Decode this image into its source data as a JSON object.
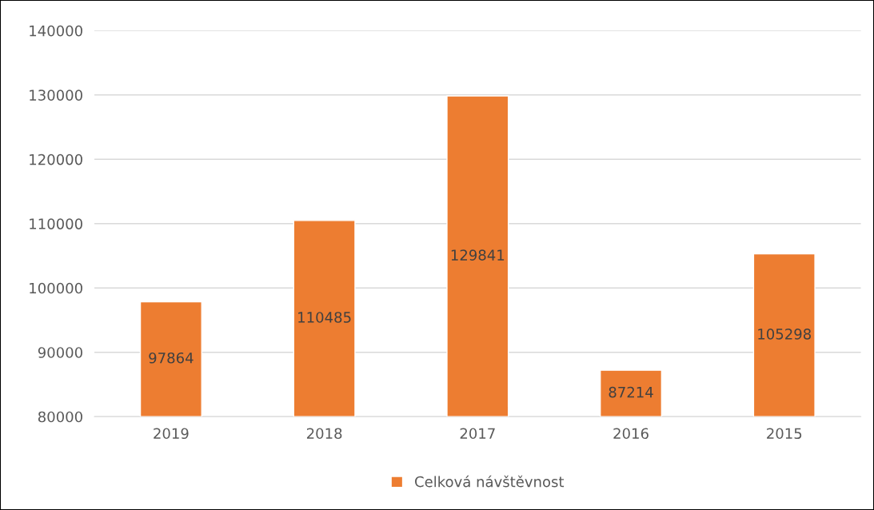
{
  "chart_data": {
    "type": "bar",
    "categories": [
      "2019",
      "2018",
      "2017",
      "2016",
      "2015"
    ],
    "series": [
      {
        "name": "Celková návštěvnost",
        "color": "#ed7d31",
        "values": [
          97864,
          110485,
          129841,
          87214,
          105298
        ]
      }
    ],
    "ylim": [
      80000,
      140000
    ],
    "yticks": [
      80000,
      90000,
      100000,
      110000,
      120000,
      130000,
      140000
    ],
    "grid": "y",
    "legend": "bottom",
    "data_labels": true
  }
}
